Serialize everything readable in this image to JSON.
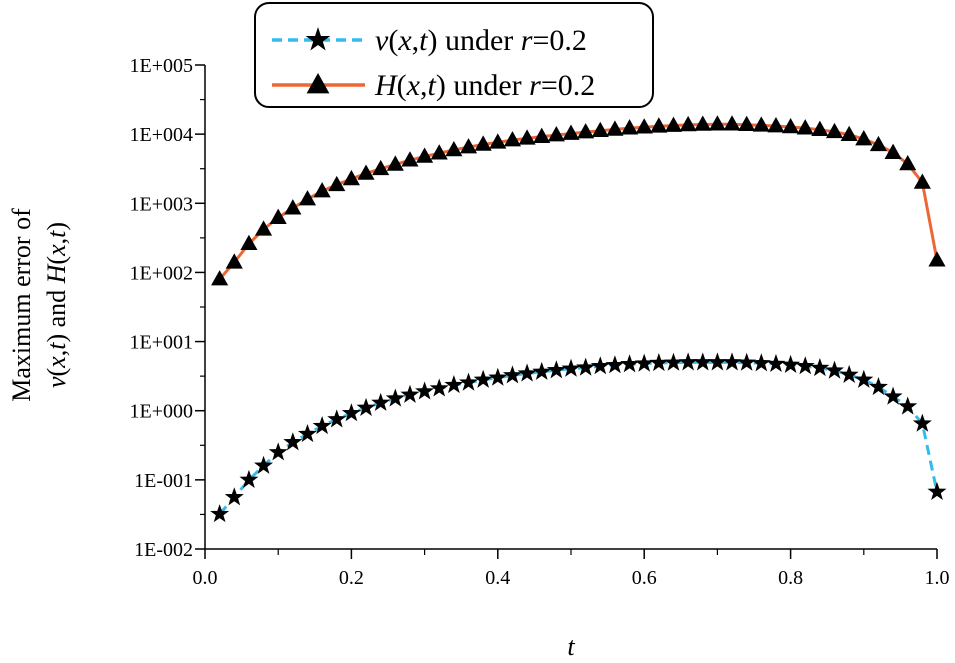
{
  "chart_data": {
    "type": "line",
    "yscale": "log",
    "xlabel": "t",
    "ylabel": {
      "line1": "Maximum error of",
      "line2": [
        {
          "text": "v",
          "italic": true
        },
        {
          "text": "(",
          "italic": false
        },
        {
          "text": "x",
          "italic": true
        },
        {
          "text": ",",
          "italic": false
        },
        {
          "text": "t",
          "italic": true
        },
        {
          "text": ") and ",
          "italic": false
        },
        {
          "text": "H",
          "italic": true
        },
        {
          "text": "(",
          "italic": false
        },
        {
          "text": "x",
          "italic": true
        },
        {
          "text": ",",
          "italic": false
        },
        {
          "text": "t",
          "italic": true
        },
        {
          "text": ")",
          "italic": false
        }
      ]
    },
    "xlim": [
      0.0,
      1.0
    ],
    "ylim": [
      0.01,
      100000
    ],
    "x_ticks": [
      0.0,
      0.2,
      0.4,
      0.6,
      0.8,
      1.0
    ],
    "x_tick_labels": [
      "0.0",
      "0.2",
      "0.4",
      "0.6",
      "0.8",
      "1.0"
    ],
    "y_ticks": [
      0.01,
      0.1,
      1,
      10,
      100,
      1000,
      10000,
      100000
    ],
    "y_tick_labels": [
      "1E-002",
      "1E-001",
      "1E+000",
      "1E+001",
      "1E+002",
      "1E+003",
      "1E+004",
      "1E+005"
    ],
    "legend_position": "top-center",
    "series": [
      {
        "name": "v(x,t) under r=0.2",
        "legend": [
          {
            "text": "v",
            "italic": true
          },
          {
            "text": "(",
            "italic": false
          },
          {
            "text": "x",
            "italic": true
          },
          {
            "text": ",",
            "italic": false
          },
          {
            "text": "t",
            "italic": true
          },
          {
            "text": ") under ",
            "italic": false
          },
          {
            "text": "r",
            "italic": true
          },
          {
            "text": "=0.2",
            "italic": false
          }
        ],
        "color": "#33bbee",
        "line_style": "dashed",
        "marker": "star",
        "x": [
          0.02,
          0.04,
          0.06,
          0.08,
          0.1,
          0.12,
          0.14,
          0.16,
          0.18,
          0.2,
          0.22,
          0.24,
          0.26,
          0.28,
          0.3,
          0.32,
          0.34,
          0.36,
          0.38,
          0.4,
          0.42,
          0.44,
          0.46,
          0.48,
          0.5,
          0.52,
          0.54,
          0.56,
          0.58,
          0.6,
          0.62,
          0.64,
          0.66,
          0.68,
          0.7,
          0.72,
          0.74,
          0.76,
          0.78,
          0.8,
          0.82,
          0.84,
          0.86,
          0.88,
          0.9,
          0.92,
          0.94,
          0.96,
          0.98,
          1.0
        ],
        "y": [
          0.032,
          0.056,
          0.1,
          0.16,
          0.25,
          0.35,
          0.46,
          0.6,
          0.75,
          0.92,
          1.1,
          1.3,
          1.5,
          1.7,
          1.9,
          2.1,
          2.35,
          2.55,
          2.8,
          3.0,
          3.25,
          3.45,
          3.65,
          3.85,
          4.05,
          4.2,
          4.4,
          4.55,
          4.7,
          4.8,
          4.9,
          4.95,
          5.0,
          5.0,
          5.0,
          5.0,
          4.95,
          4.85,
          4.75,
          4.6,
          4.4,
          4.15,
          3.8,
          3.3,
          2.8,
          2.2,
          1.6,
          1.15,
          0.65,
          0.067
        ]
      },
      {
        "name": "H(x,t) under r=0.2",
        "legend": [
          {
            "text": "H",
            "italic": true
          },
          {
            "text": "(",
            "italic": false
          },
          {
            "text": "x",
            "italic": true
          },
          {
            "text": ",",
            "italic": false
          },
          {
            "text": "t",
            "italic": true
          },
          {
            "text": ") under ",
            "italic": false
          },
          {
            "text": "r",
            "italic": true
          },
          {
            "text": "=0.2",
            "italic": false
          }
        ],
        "color": "#ee6633",
        "line_style": "solid",
        "marker": "triangle",
        "x": [
          0.02,
          0.04,
          0.06,
          0.08,
          0.1,
          0.12,
          0.14,
          0.16,
          0.18,
          0.2,
          0.22,
          0.24,
          0.26,
          0.28,
          0.3,
          0.32,
          0.34,
          0.36,
          0.38,
          0.4,
          0.42,
          0.44,
          0.46,
          0.48,
          0.5,
          0.52,
          0.54,
          0.56,
          0.58,
          0.6,
          0.62,
          0.64,
          0.66,
          0.68,
          0.7,
          0.72,
          0.74,
          0.76,
          0.78,
          0.8,
          0.82,
          0.84,
          0.86,
          0.88,
          0.9,
          0.92,
          0.94,
          0.96,
          0.98,
          1.0
        ],
        "y": [
          80,
          140,
          260,
          420,
          620,
          850,
          1150,
          1500,
          1850,
          2250,
          2700,
          3150,
          3650,
          4200,
          4750,
          5300,
          5900,
          6500,
          7100,
          7600,
          8200,
          8700,
          9200,
          9700,
          10200,
          10700,
          11200,
          11700,
          12200,
          12600,
          13000,
          13300,
          13600,
          13800,
          13900,
          13900,
          13700,
          13400,
          13100,
          12700,
          12200,
          11600,
          10800,
          9800,
          8500,
          7000,
          5400,
          3700,
          2000,
          150
        ]
      }
    ]
  }
}
